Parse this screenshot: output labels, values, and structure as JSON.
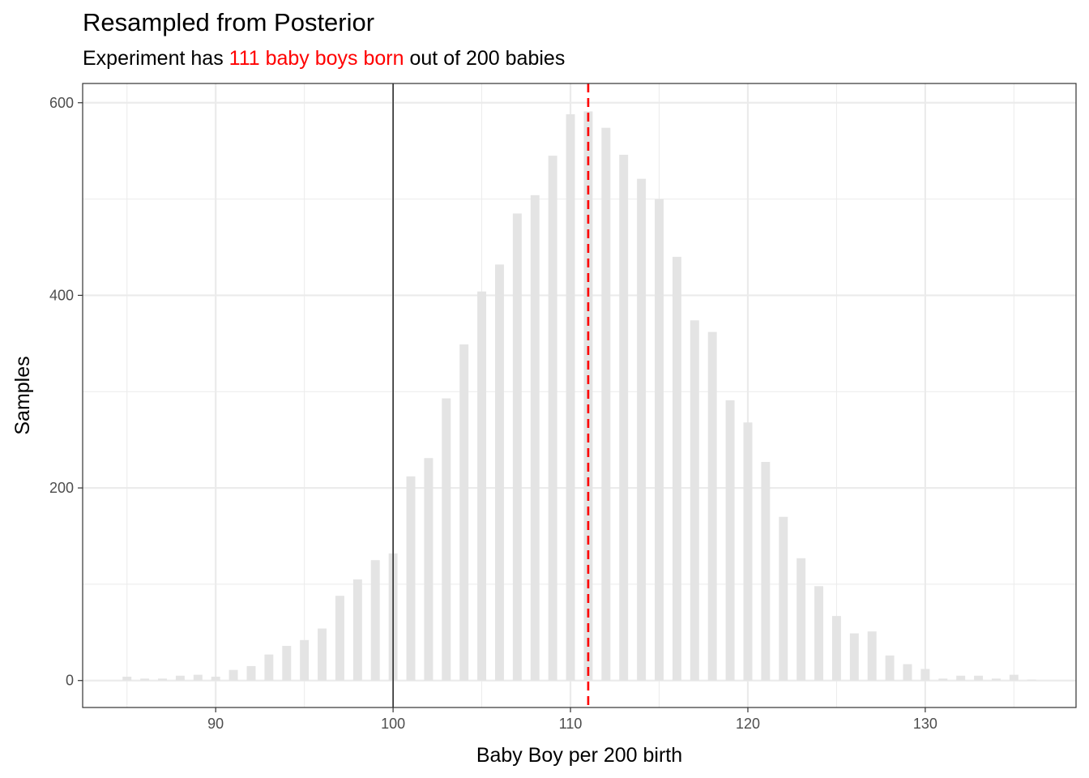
{
  "chart_data": {
    "type": "bar",
    "title": "Resampled from Posterior",
    "subtitle": {
      "prefix": "Experiment has ",
      "highlight": "111 baby boys born",
      "suffix": " out of 200 babies"
    },
    "xlabel": "Baby Boy per 200 birth",
    "ylabel": "Samples",
    "x": [
      85,
      86,
      87,
      88,
      89,
      90,
      91,
      92,
      93,
      94,
      95,
      96,
      97,
      98,
      99,
      100,
      101,
      102,
      103,
      104,
      105,
      106,
      107,
      108,
      109,
      110,
      111,
      112,
      113,
      114,
      115,
      116,
      117,
      118,
      119,
      120,
      121,
      122,
      123,
      124,
      125,
      126,
      127,
      128,
      129,
      130,
      131,
      132,
      133,
      134,
      135,
      136
    ],
    "values": [
      4,
      2,
      2,
      5,
      6,
      4,
      11,
      15,
      27,
      36,
      42,
      54,
      88,
      105,
      125,
      132,
      212,
      231,
      293,
      349,
      404,
      432,
      485,
      504,
      545,
      588,
      591,
      574,
      546,
      521,
      500,
      440,
      374,
      362,
      291,
      268,
      227,
      170,
      127,
      98,
      67,
      49,
      51,
      26,
      17,
      12,
      2,
      5,
      5,
      2,
      6,
      1
    ],
    "xlim": [
      82.5,
      138.5
    ],
    "ylim": [
      -28,
      620
    ],
    "xticks": [
      90,
      100,
      110,
      120,
      130
    ],
    "yticks": [
      0,
      200,
      400,
      600
    ],
    "reference_lines": [
      {
        "x": 100,
        "style": "solid",
        "color": "#000000"
      },
      {
        "x": 111,
        "style": "dashed",
        "color": "#ff0000"
      }
    ],
    "bar_color": "#e4e4e4",
    "grid": true,
    "legend": "none"
  },
  "colors": {
    "highlight": "#ff0000",
    "bars": "#e4e4e4",
    "grid": "#ebebeb",
    "panel_border": "#333333"
  }
}
